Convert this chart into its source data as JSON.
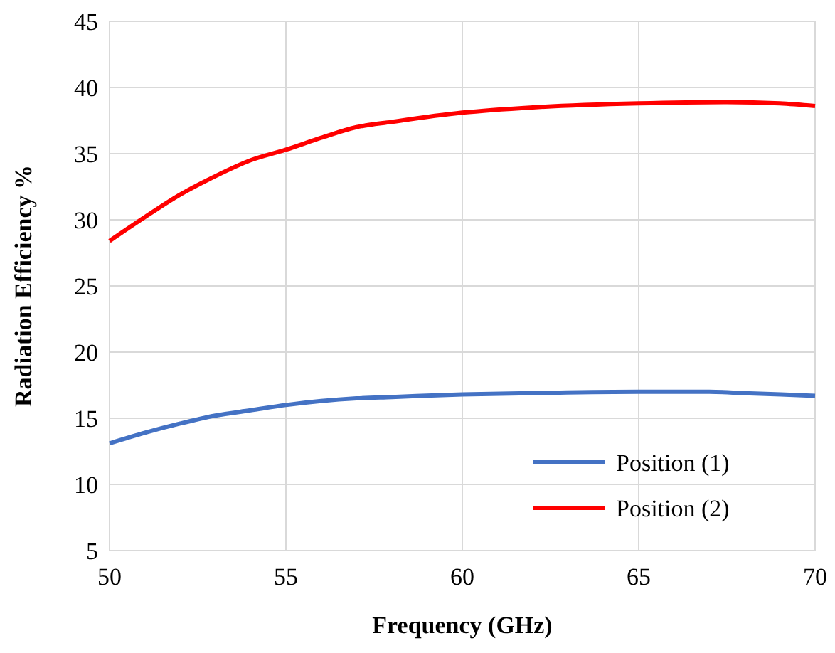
{
  "chart_data": {
    "type": "line",
    "xlabel": "Frequency (GHz)",
    "ylabel": "Radiation Efficiency %",
    "xlim": [
      50,
      70
    ],
    "xticks": [
      50,
      55,
      60,
      65,
      70
    ],
    "ylim": [
      5,
      45
    ],
    "yticks": [
      5,
      10,
      15,
      20,
      25,
      30,
      35,
      40,
      45
    ],
    "grid": true,
    "legend": "bottom right",
    "line_style": "solid",
    "marker": "none",
    "series": [
      {
        "name": "Position (1)",
        "color": "#4472c4",
        "x": [
          50,
          51,
          52,
          53,
          54,
          55,
          56,
          57,
          58,
          60,
          62,
          65,
          67,
          68,
          70
        ],
        "values": [
          13.1,
          13.9,
          14.6,
          15.2,
          15.6,
          16.0,
          16.3,
          16.5,
          16.6,
          16.8,
          16.9,
          17.0,
          17.0,
          16.9,
          16.7
        ]
      },
      {
        "name": "Position (2)",
        "color": "#ff0000",
        "x": [
          50,
          51,
          52,
          53,
          54,
          55,
          56,
          57,
          58,
          60,
          62,
          65,
          67.5,
          69,
          70
        ],
        "values": [
          28.4,
          30.2,
          31.9,
          33.3,
          34.5,
          35.3,
          36.2,
          37.0,
          37.4,
          38.1,
          38.5,
          38.8,
          38.9,
          38.8,
          38.6
        ]
      }
    ]
  }
}
